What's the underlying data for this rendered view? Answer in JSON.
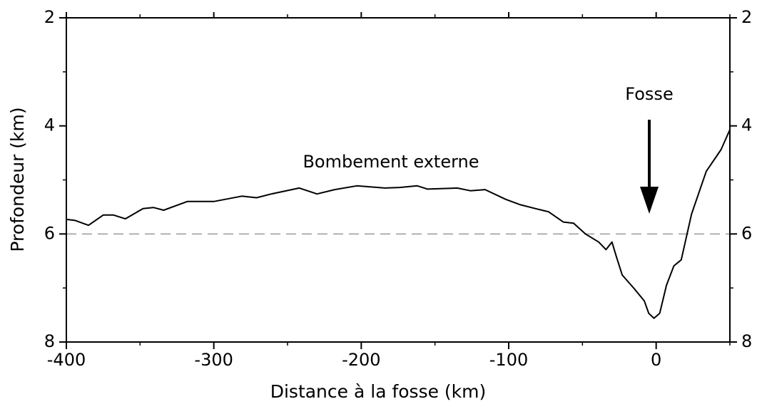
{
  "chart_data": {
    "type": "line",
    "xlabel": "Distance à la fosse (km)",
    "ylabel": "Profondeur (km)",
    "annotations": [
      "Bombement externe",
      "Fosse"
    ],
    "x": [
      -400,
      -394,
      -385,
      -375,
      -368,
      -360,
      -348,
      -341,
      -334,
      -318,
      -300,
      -281,
      -271,
      -261,
      -242,
      -230,
      -218,
      -203,
      -184,
      -174,
      -162,
      -155,
      -135,
      -126,
      -116,
      -102,
      -92,
      -82,
      -73,
      -63,
      -56,
      -48,
      -39,
      -34,
      -30,
      -27,
      -23,
      -15,
      -8,
      -5,
      -1.5,
      2.4,
      7,
      12,
      17,
      24,
      34,
      44,
      50
    ],
    "values": [
      5.73,
      5.75,
      5.84,
      5.65,
      5.65,
      5.72,
      5.53,
      5.51,
      5.56,
      5.4,
      5.4,
      5.3,
      5.33,
      5.26,
      5.15,
      5.26,
      5.18,
      5.11,
      5.15,
      5.14,
      5.11,
      5.17,
      5.15,
      5.2,
      5.18,
      5.36,
      5.46,
      5.53,
      5.59,
      5.78,
      5.8,
      6.0,
      6.15,
      6.29,
      6.15,
      6.42,
      6.76,
      7.01,
      7.24,
      7.47,
      7.56,
      7.47,
      6.95,
      6.59,
      6.48,
      5.63,
      4.84,
      4.44,
      4.07
    ],
    "color": "#000000",
    "xlim": [
      -400,
      50
    ],
    "xticks": [
      -400,
      -300,
      -200,
      -100,
      0
    ],
    "xminorticks": [
      -350,
      -250,
      -150,
      -50,
      50
    ],
    "ylim": [
      2,
      8
    ],
    "invert_y": true,
    "yticks": [
      2,
      4,
      6,
      8
    ],
    "yminorticks": [
      3,
      5,
      7
    ],
    "y2lim": [
      2,
      8
    ],
    "y2ticks": [
      2,
      4,
      6,
      8
    ],
    "hline": 6,
    "hline_color": "#999999"
  }
}
